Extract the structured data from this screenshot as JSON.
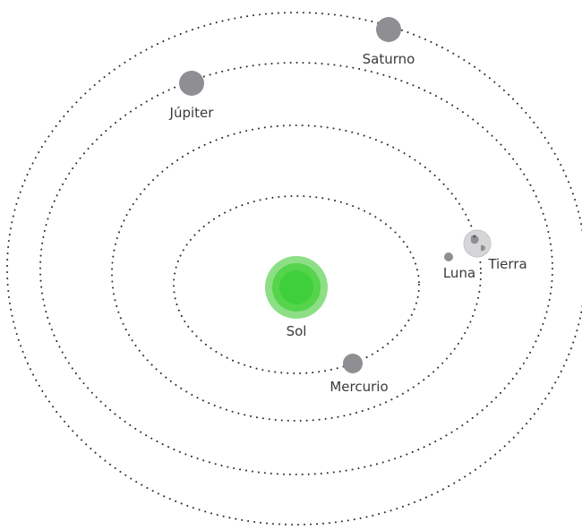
{
  "labels": {
    "sun": "Sol",
    "mercury": "Mercurio",
    "earth": "Tierra",
    "moon": "Luna",
    "jupiter": "Júpiter",
    "saturn": "Saturno"
  },
  "colors": {
    "sun_outer": "#8ddf86",
    "sun_mid": "#55d44c",
    "sun_core": "#3ecf3a",
    "planet": "#8f8f93",
    "earth": "#d6d6d8",
    "orbit": "#2a2a2a",
    "text": "#3a3a3a"
  }
}
